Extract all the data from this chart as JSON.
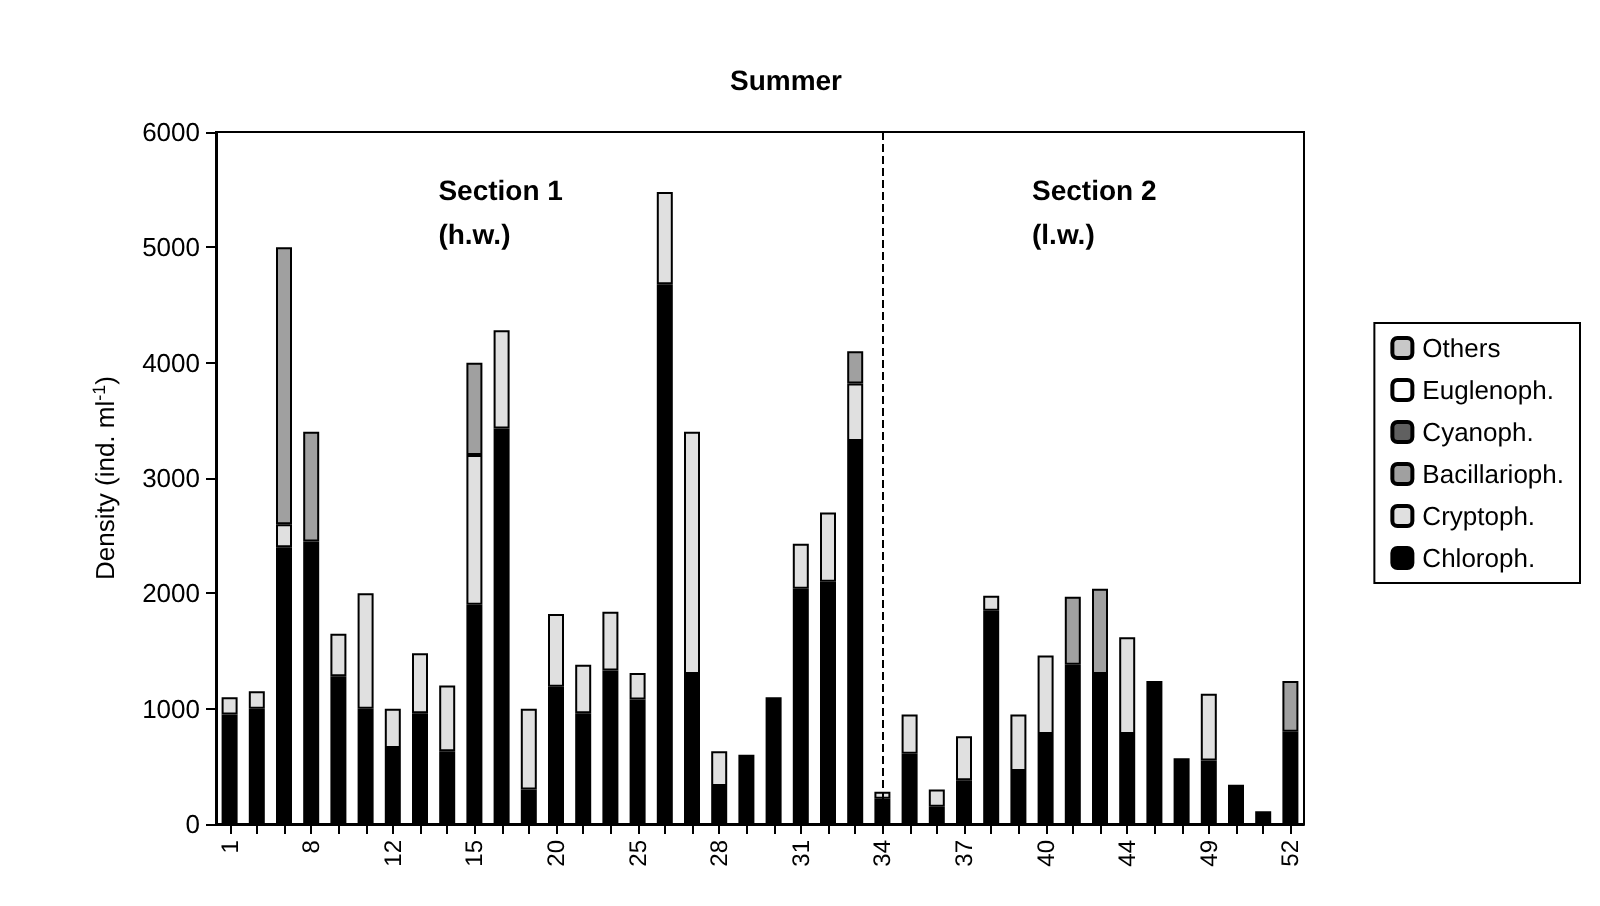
{
  "chart_data": {
    "type": "bar",
    "title": "Summer",
    "ylabel": "Density (ind. ml$^{-1}$)",
    "stacked": true,
    "legend": "right",
    "grid": false,
    "categories": [
      "1",
      null,
      null,
      "8",
      null,
      null,
      "12",
      null,
      null,
      "15",
      null,
      null,
      "20",
      null,
      null,
      "25",
      null,
      null,
      "28",
      null,
      null,
      "31",
      null,
      null,
      "34",
      null,
      null,
      "37",
      null,
      null,
      "40",
      null,
      null,
      "44",
      null,
      null,
      "49",
      null,
      null,
      "52"
    ],
    "ylim": [
      0,
      6000
    ],
    "yticks": [
      0,
      1000,
      2000,
      3000,
      4000,
      5000,
      6000
    ],
    "series": [
      {
        "name": "Chloroph.",
        "color": "#000000",
        "values": [
          950,
          1000,
          2400,
          2450,
          1280,
          1000,
          660,
          960,
          630,
          1900,
          3430,
          300,
          1190,
          960,
          1330,
          1080,
          4680,
          1300,
          330,
          600,
          1100,
          2040,
          2100,
          3320,
          220,
          610,
          150,
          380,
          1850,
          460,
          780,
          1380,
          1300,
          780,
          1240,
          570,
          550,
          340,
          110,
          800
        ]
      },
      {
        "name": "Cryptoph.",
        "color": "#e0e0e0",
        "values": [
          150,
          150,
          200,
          0,
          370,
          1000,
          340,
          520,
          570,
          1300,
          850,
          700,
          630,
          420,
          510,
          230,
          800,
          2100,
          300,
          0,
          0,
          390,
          600,
          500,
          60,
          340,
          150,
          380,
          130,
          490,
          680,
          0,
          0,
          840,
          0,
          0,
          580,
          0,
          0,
          0
        ]
      },
      {
        "name": "Bacillarioph.",
        "color": "#a0a0a0",
        "values": [
          0,
          0,
          2400,
          950,
          0,
          0,
          0,
          0,
          0,
          800,
          0,
          0,
          0,
          0,
          0,
          0,
          0,
          0,
          0,
          0,
          0,
          0,
          0,
          280,
          0,
          0,
          0,
          0,
          0,
          0,
          0,
          590,
          740,
          0,
          0,
          0,
          0,
          0,
          0,
          440
        ]
      },
      {
        "name": "Cyanoph.",
        "color": "#606060",
        "values": [
          0,
          0,
          0,
          0,
          0,
          0,
          0,
          0,
          0,
          0,
          0,
          0,
          0,
          0,
          0,
          0,
          0,
          0,
          0,
          0,
          0,
          0,
          0,
          0,
          0,
          0,
          0,
          0,
          0,
          0,
          0,
          0,
          0,
          0,
          0,
          0,
          0,
          0,
          0,
          0
        ]
      },
      {
        "name": "Euglenoph.",
        "color": "#ffffff",
        "values": [
          0,
          0,
          0,
          0,
          0,
          0,
          0,
          0,
          0,
          0,
          0,
          0,
          0,
          0,
          0,
          0,
          0,
          0,
          0,
          0,
          0,
          0,
          0,
          0,
          0,
          0,
          0,
          0,
          0,
          0,
          0,
          0,
          0,
          0,
          0,
          0,
          0,
          0,
          0,
          0
        ]
      },
      {
        "name": "Others",
        "color": "#c8c8c8",
        "values": [
          0,
          0,
          0,
          0,
          0,
          0,
          0,
          0,
          0,
          0,
          0,
          0,
          0,
          0,
          0,
          0,
          0,
          0,
          0,
          0,
          0,
          0,
          0,
          0,
          0,
          0,
          0,
          0,
          0,
          0,
          0,
          0,
          0,
          0,
          0,
          0,
          0,
          0,
          0,
          0
        ]
      }
    ],
    "ref_lines": [
      {
        "axis": "x",
        "value": "34",
        "color": "#000000",
        "line_style": "dashed"
      }
    ],
    "annotations": [
      "Section 1\n(h.w.)",
      "Section 2\n(l.w.)"
    ]
  }
}
